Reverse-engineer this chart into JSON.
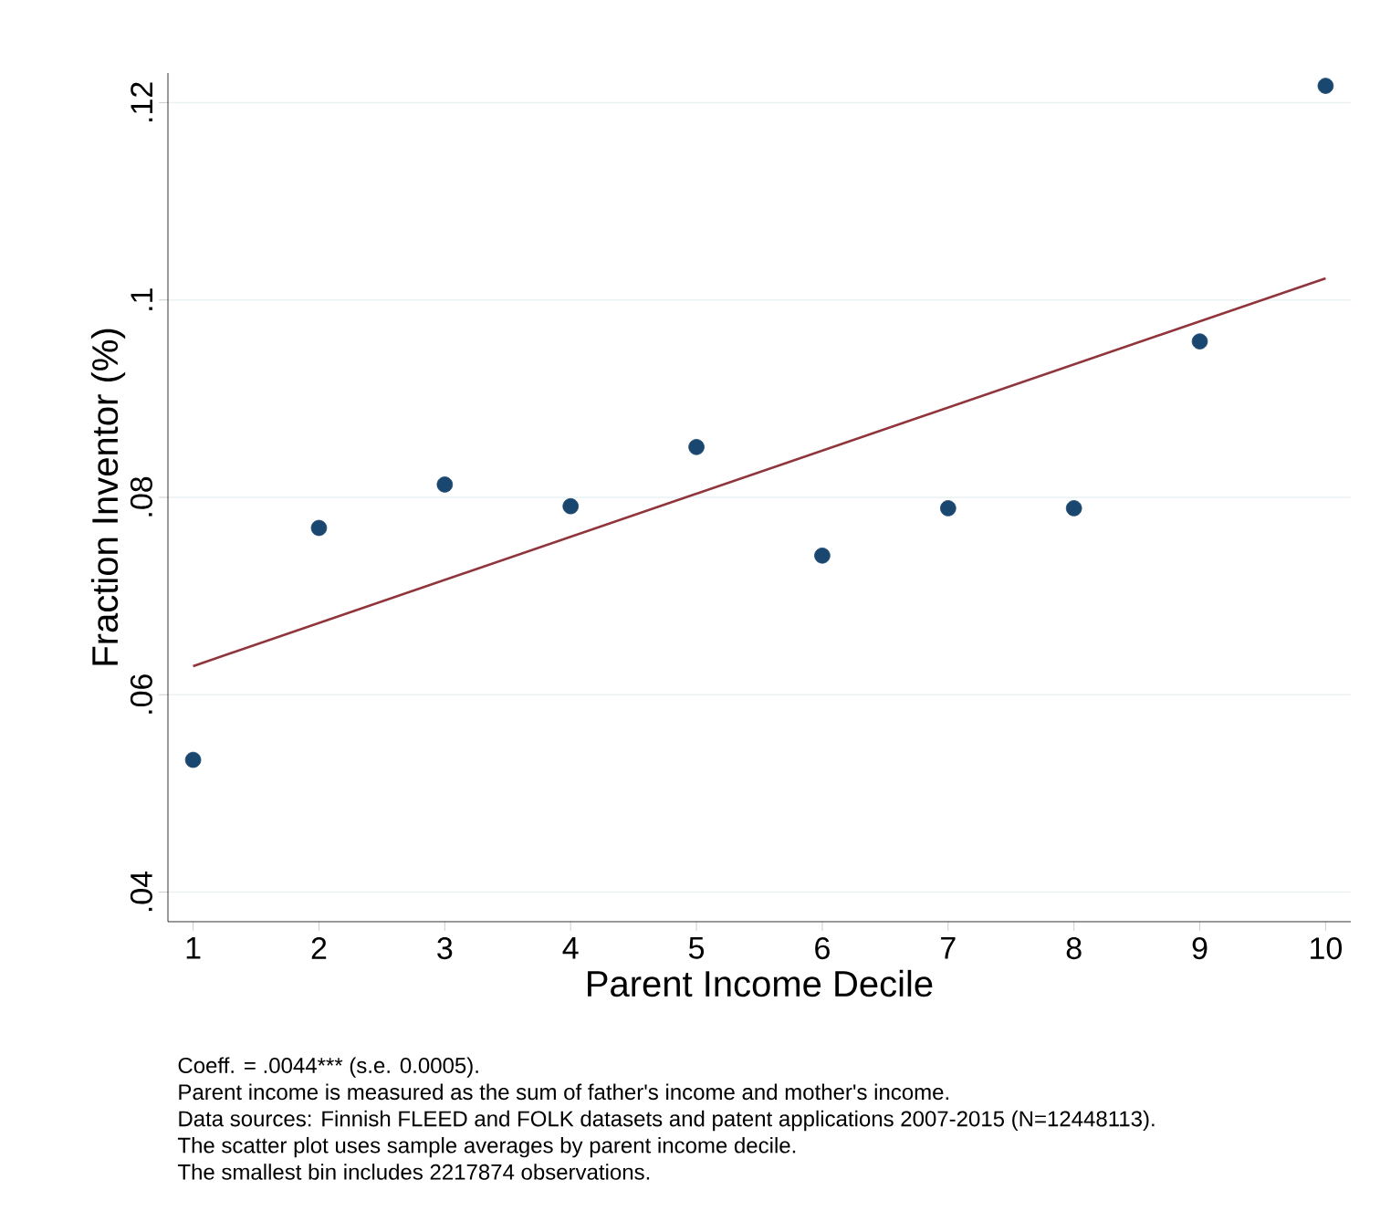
{
  "chart_data": {
    "type": "scatter",
    "xlabel": "Parent Income Decile",
    "ylabel": "Fraction Inventor (%)",
    "xlim": [
      0.8,
      10.2
    ],
    "ylim": [
      0.037,
      0.123
    ],
    "xticks": [
      1,
      2,
      3,
      4,
      5,
      6,
      7,
      8,
      9,
      10
    ],
    "yticks": [
      {
        "value": 0.04,
        "label": ".04"
      },
      {
        "value": 0.06,
        "label": ".06"
      },
      {
        "value": 0.08,
        "label": ".08"
      },
      {
        "value": 0.1,
        "label": ".1"
      },
      {
        "value": 0.12,
        "label": ".12"
      }
    ],
    "grid": "y",
    "series": [
      {
        "type": "scatter",
        "color": "#1a476f",
        "marker": "circle",
        "x": [
          1,
          2,
          3,
          4,
          5,
          6,
          7,
          8,
          9,
          10
        ],
        "values": [
          0.0534,
          0.0769,
          0.0813,
          0.0791,
          0.0851,
          0.0741,
          0.0789,
          0.0789,
          0.0958,
          0.1217
        ]
      },
      {
        "type": "line",
        "color": "#90353b",
        "marker": "none",
        "x": [
          1,
          10
        ],
        "values": [
          0.0629,
          0.1022
        ]
      }
    ],
    "annotations": [
      "Coeff. = .0044*** (s.e. 0.0005).",
      "Parent income is measured as the sum of father's income and mother's income.",
      "Data sources: Finnish FLEED and FOLK datasets and patent applications 2007-2015 (N=12448113).",
      "The scatter plot uses sample averages by parent income decile.",
      "The smallest bin includes 2217874 observations."
    ]
  }
}
